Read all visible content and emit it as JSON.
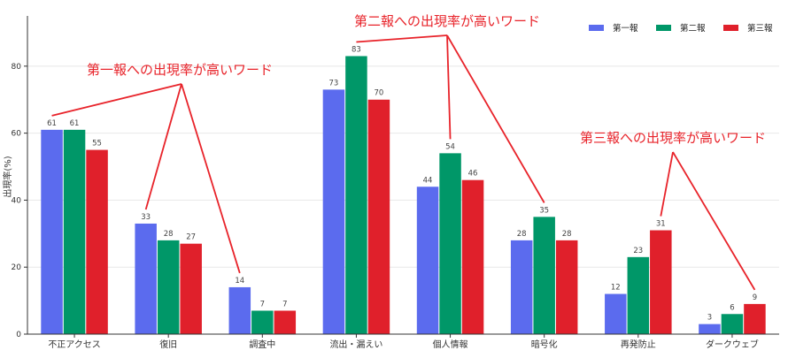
{
  "chart_data": {
    "type": "bar",
    "ylabel": "出現率(%)",
    "xlabel": "",
    "ylim": [
      0,
      95
    ],
    "yticks": [
      0,
      20,
      40,
      60,
      80
    ],
    "grid": "horizontal",
    "legend_position": "top-right",
    "categories": [
      "不正アクセス",
      "復旧",
      "調査中",
      "流出・漏えい",
      "個人情報",
      "暗号化",
      "再発防止",
      "ダークウェブ"
    ],
    "series": [
      {
        "name": "第一報",
        "color": "#5b6bee",
        "values": [
          61,
          33,
          14,
          73,
          44,
          28,
          12,
          3
        ]
      },
      {
        "name": "第二報",
        "color": "#009768",
        "values": [
          61,
          28,
          7,
          83,
          54,
          35,
          23,
          6
        ]
      },
      {
        "name": "第三報",
        "color": "#e0202b",
        "values": [
          55,
          27,
          7,
          70,
          46,
          28,
          31,
          9
        ]
      }
    ],
    "annotations": [
      {
        "text": "第一報への出現率が高いワード",
        "targets": [
          [
            0,
            0
          ],
          [
            1,
            0
          ],
          [
            2,
            0
          ]
        ]
      },
      {
        "text": "第二報への出現率が高いワード",
        "targets": [
          [
            3,
            1
          ],
          [
            4,
            1
          ],
          [
            5,
            1
          ]
        ]
      },
      {
        "text": "第三報への出現率が高いワード",
        "targets": [
          [
            6,
            2
          ],
          [
            7,
            2
          ]
        ]
      }
    ],
    "annotation_color": "#e8232a"
  }
}
